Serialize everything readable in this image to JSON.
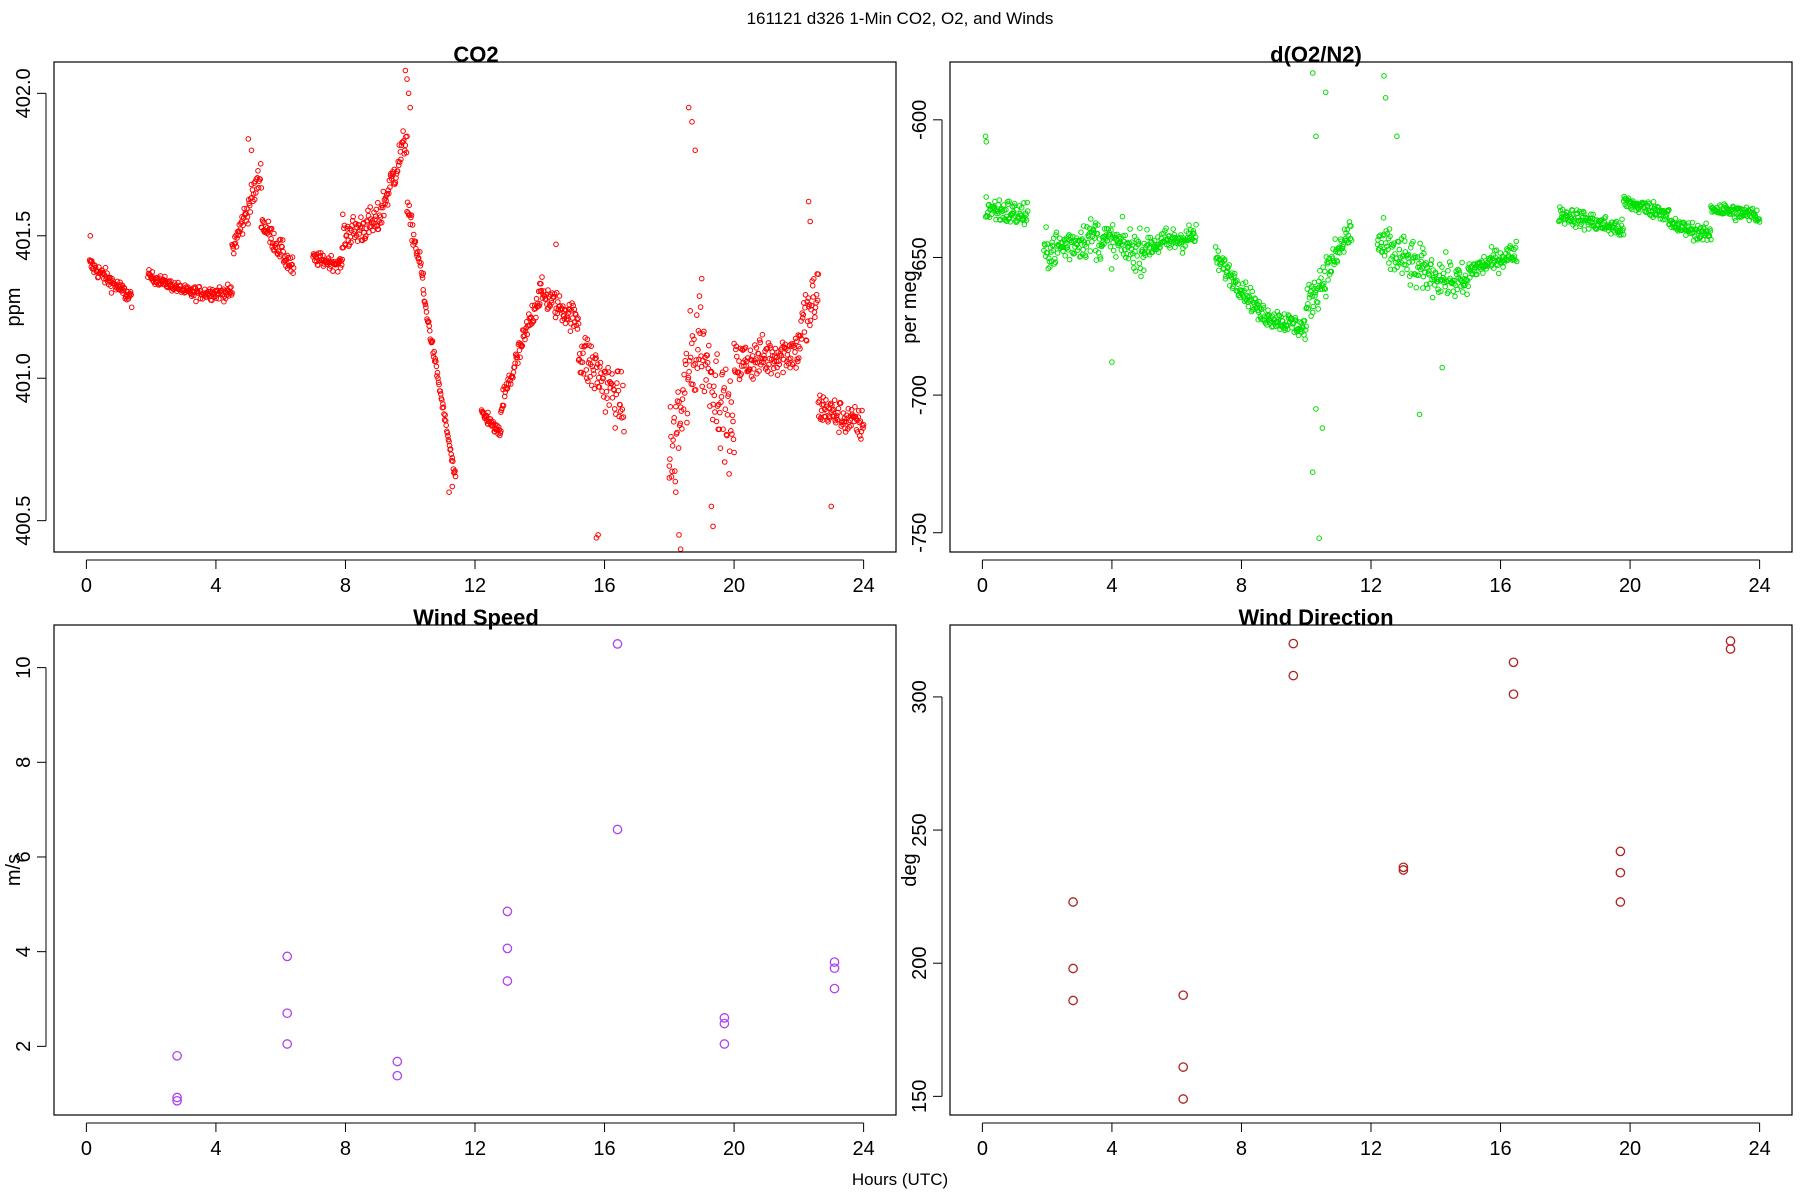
{
  "figure": {
    "title": "161121   d326   1-Min CO2, O2, and Winds",
    "xlabel": "Hours (UTC)"
  },
  "chart_data": [
    {
      "type": "scatter",
      "title": "CO2",
      "ylabel": "ppm",
      "color": "#ff0000",
      "xlim": [
        -1,
        25
      ],
      "ylim": [
        400.39,
        402.11
      ],
      "xticks": [
        0,
        4,
        8,
        12,
        16,
        20,
        24
      ],
      "yticks": [
        400.5,
        401.0,
        401.5,
        402.0
      ],
      "ytick_labels": [
        "400.5",
        "401.0",
        "401.5",
        "402.0"
      ],
      "segments": [
        {
          "x0": 0.1,
          "x1": 1.4,
          "y0": 401.4,
          "y1": 401.28,
          "noise": 0.06
        },
        {
          "x0": 1.9,
          "x1": 3.2,
          "y0": 401.36,
          "y1": 401.3,
          "noise": 0.04
        },
        {
          "x0": 3.2,
          "x1": 4.5,
          "y0": 401.3,
          "y1": 401.3,
          "noise": 0.05
        },
        {
          "x0": 4.5,
          "x1": 5.4,
          "y0": 401.45,
          "y1": 401.72,
          "noise": 0.1
        },
        {
          "x0": 5.4,
          "x1": 6.4,
          "y0": 401.55,
          "y1": 401.38,
          "noise": 0.08
        },
        {
          "x0": 7.0,
          "x1": 7.9,
          "y0": 401.42,
          "y1": 401.4,
          "noise": 0.05
        },
        {
          "x0": 7.9,
          "x1": 9.0,
          "y0": 401.5,
          "y1": 401.55,
          "noise": 0.12
        },
        {
          "x0": 9.0,
          "x1": 9.9,
          "y0": 401.55,
          "y1": 401.85,
          "noise": 0.12
        },
        {
          "x0": 9.9,
          "x1": 10.4,
          "y0": 401.6,
          "y1": 401.35,
          "noise": 0.08
        },
        {
          "x0": 10.4,
          "x1": 11.4,
          "y0": 401.3,
          "y1": 400.64,
          "noise": 0.04
        },
        {
          "x0": 12.2,
          "x1": 12.8,
          "y0": 400.88,
          "y1": 400.8,
          "noise": 0.04
        },
        {
          "x0": 12.8,
          "x1": 14.0,
          "y0": 400.9,
          "y1": 401.3,
          "noise": 0.1
        },
        {
          "x0": 14.0,
          "x1": 15.2,
          "y0": 401.3,
          "y1": 401.2,
          "noise": 0.1
        },
        {
          "x0": 15.2,
          "x1": 16.6,
          "y0": 401.1,
          "y1": 400.9,
          "noise": 0.2
        },
        {
          "x0": 18.0,
          "x1": 19.0,
          "y0": 400.7,
          "y1": 401.2,
          "noise": 0.4
        },
        {
          "x0": 19.0,
          "x1": 20.0,
          "y0": 401.1,
          "y1": 400.8,
          "noise": 0.3
        },
        {
          "x0": 20.0,
          "x1": 22.0,
          "y0": 401.05,
          "y1": 401.1,
          "noise": 0.15
        },
        {
          "x0": 22.0,
          "x1": 22.6,
          "y0": 401.15,
          "y1": 401.3,
          "noise": 0.25
        },
        {
          "x0": 22.6,
          "x1": 24.0,
          "y0": 400.9,
          "y1": 400.83,
          "noise": 0.12
        }
      ],
      "points": [
        [
          0.12,
          401.5
        ],
        [
          9.85,
          402.08
        ],
        [
          9.9,
          402.05
        ],
        [
          9.95,
          402.0
        ],
        [
          10.0,
          401.95
        ],
        [
          18.6,
          401.95
        ],
        [
          18.7,
          401.9
        ],
        [
          18.8,
          401.8
        ],
        [
          18.2,
          400.6
        ],
        [
          18.3,
          400.45
        ],
        [
          18.35,
          400.4
        ],
        [
          15.8,
          400.45
        ],
        [
          15.75,
          400.44
        ],
        [
          19.3,
          400.55
        ],
        [
          19.35,
          400.48
        ],
        [
          23.0,
          400.55
        ],
        [
          22.3,
          401.62
        ],
        [
          22.35,
          401.55
        ],
        [
          14.5,
          401.47
        ],
        [
          5.0,
          401.84
        ],
        [
          5.1,
          401.8
        ],
        [
          11.2,
          400.6
        ],
        [
          11.3,
          400.62
        ],
        [
          18.0,
          400.65
        ],
        [
          12.4,
          400.88
        ]
      ]
    },
    {
      "type": "scatter",
      "title": "d(O2/N2)",
      "ylabel": "per meg",
      "color": "#00e000",
      "xlim": [
        -1,
        25
      ],
      "ylim": [
        -757,
        -579
      ],
      "xticks": [
        0,
        4,
        8,
        12,
        16,
        20,
        24
      ],
      "yticks": [
        -750,
        -700,
        -650,
        -600
      ],
      "ytick_labels": [
        "-750",
        "-700",
        "-650",
        "-600"
      ],
      "segments": [
        {
          "x0": 0.1,
          "x1": 1.4,
          "y0": -632,
          "y1": -635,
          "noise": 10
        },
        {
          "x0": 1.9,
          "x1": 3.5,
          "y0": -648,
          "y1": -642,
          "noise": 14
        },
        {
          "x0": 3.5,
          "x1": 5.0,
          "y0": -643,
          "y1": -648,
          "noise": 15
        },
        {
          "x0": 5.0,
          "x1": 6.6,
          "y0": -646,
          "y1": -642,
          "noise": 10
        },
        {
          "x0": 7.2,
          "x1": 8.5,
          "y0": -650,
          "y1": -668,
          "noise": 8
        },
        {
          "x0": 8.5,
          "x1": 10.0,
          "y0": -670,
          "y1": -676,
          "noise": 8
        },
        {
          "x0": 10.0,
          "x1": 11.4,
          "y0": -668,
          "y1": -640,
          "noise": 14
        },
        {
          "x0": 12.2,
          "x1": 13.6,
          "y0": -645,
          "y1": -655,
          "noise": 18
        },
        {
          "x0": 13.6,
          "x1": 15.0,
          "y0": -655,
          "y1": -660,
          "noise": 14
        },
        {
          "x0": 15.0,
          "x1": 16.5,
          "y0": -655,
          "y1": -648,
          "noise": 8
        },
        {
          "x0": 17.8,
          "x1": 19.8,
          "y0": -634,
          "y1": -640,
          "noise": 7
        },
        {
          "x0": 19.8,
          "x1": 21.2,
          "y0": -630,
          "y1": -634,
          "noise": 6
        },
        {
          "x0": 21.2,
          "x1": 22.5,
          "y0": -638,
          "y1": -642,
          "noise": 6
        },
        {
          "x0": 22.5,
          "x1": 24.0,
          "y0": -632,
          "y1": -635,
          "noise": 6
        }
      ],
      "points": [
        [
          0.1,
          -606
        ],
        [
          0.12,
          -608
        ],
        [
          10.2,
          -583
        ],
        [
          10.3,
          -606
        ],
        [
          10.6,
          -590
        ],
        [
          12.4,
          -584
        ],
        [
          12.45,
          -592
        ],
        [
          10.2,
          -728
        ],
        [
          10.4,
          -752
        ],
        [
          10.3,
          -705
        ],
        [
          10.5,
          -712
        ],
        [
          13.5,
          -707
        ],
        [
          12.8,
          -606
        ],
        [
          4.0,
          -688
        ],
        [
          14.2,
          -690
        ]
      ]
    },
    {
      "type": "scatter",
      "title": "Wind Speed",
      "ylabel": "m/s",
      "color": "#b040f0",
      "xlim": [
        -1,
        25
      ],
      "ylim": [
        0.55,
        10.9
      ],
      "xticks": [
        0,
        4,
        8,
        12,
        16,
        20,
        24
      ],
      "yticks": [
        2,
        4,
        6,
        8,
        10
      ],
      "ytick_labels": [
        "2",
        "4",
        "6",
        "8",
        "10"
      ],
      "points": [
        [
          2.8,
          1.8
        ],
        [
          2.8,
          0.92
        ],
        [
          2.8,
          0.85
        ],
        [
          6.2,
          3.9
        ],
        [
          6.2,
          2.7
        ],
        [
          6.2,
          2.05
        ],
        [
          9.6,
          1.68
        ],
        [
          9.6,
          1.38
        ],
        [
          13.0,
          4.85
        ],
        [
          13.0,
          4.07
        ],
        [
          13.0,
          3.38
        ],
        [
          16.4,
          10.5
        ],
        [
          16.4,
          6.58
        ],
        [
          19.7,
          2.6
        ],
        [
          19.7,
          2.48
        ],
        [
          19.7,
          2.05
        ],
        [
          23.1,
          3.78
        ],
        [
          23.1,
          3.65
        ],
        [
          23.1,
          3.22
        ]
      ]
    },
    {
      "type": "scatter",
      "title": "Wind Direction",
      "ylabel": "deg",
      "color": "#b02020",
      "xlim": [
        -1,
        25
      ],
      "ylim": [
        143,
        327
      ],
      "xticks": [
        0,
        4,
        8,
        12,
        16,
        20,
        24
      ],
      "yticks": [
        150,
        200,
        250,
        300
      ],
      "ytick_labels": [
        "150",
        "200",
        "250",
        "300"
      ],
      "points": [
        [
          2.8,
          223
        ],
        [
          2.8,
          198
        ],
        [
          2.8,
          186
        ],
        [
          6.2,
          188
        ],
        [
          6.2,
          161
        ],
        [
          6.2,
          149
        ],
        [
          9.6,
          320
        ],
        [
          9.6,
          308
        ],
        [
          13.0,
          236
        ],
        [
          13.0,
          235
        ],
        [
          16.4,
          313
        ],
        [
          16.4,
          301
        ],
        [
          19.7,
          242
        ],
        [
          19.7,
          234
        ],
        [
          19.7,
          223
        ],
        [
          23.1,
          321
        ],
        [
          23.1,
          318
        ]
      ]
    }
  ]
}
